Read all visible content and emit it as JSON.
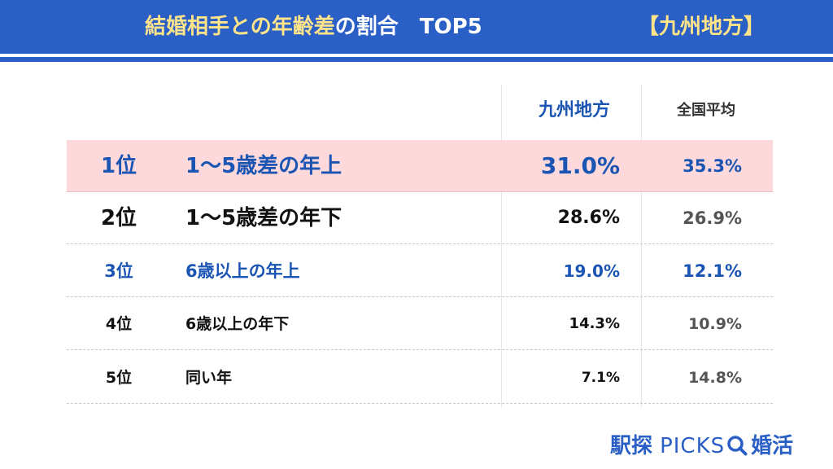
{
  "header": {
    "title_highlight": "結婚相手との年齢差",
    "title_rest": "の割合",
    "title_top": "TOP5",
    "region_tag": "【九州地方】"
  },
  "colors": {
    "header_bg": "#2a5fc6",
    "highlight_text": "#ffe48a",
    "first_row_bg": "#fdd9dc",
    "accent_blue": "#1b55b3"
  },
  "chart_data": {
    "type": "table",
    "columns": [
      "九州地方",
      "全国平均"
    ],
    "rows": [
      {
        "rank": "1位",
        "label": "1〜5歳差の年上",
        "kyushu": "31.0%",
        "national": "35.3%"
      },
      {
        "rank": "2位",
        "label": "1〜5歳差の年下",
        "kyushu": "28.6%",
        "national": "26.9%"
      },
      {
        "rank": "3位",
        "label": "6歳以上の年上",
        "kyushu": "19.0%",
        "national": "12.1%"
      },
      {
        "rank": "4位",
        "label": "6歳以上の年下",
        "kyushu": "14.3%",
        "national": "10.9%"
      },
      {
        "rank": "5位",
        "label": "同い年",
        "kyushu": "7.1%",
        "national": "14.8%"
      }
    ]
  },
  "footer": {
    "brand_jp": "駅探",
    "brand_en": "PICKS",
    "brand_suffix": "婚活",
    "icon": "search-icon"
  }
}
